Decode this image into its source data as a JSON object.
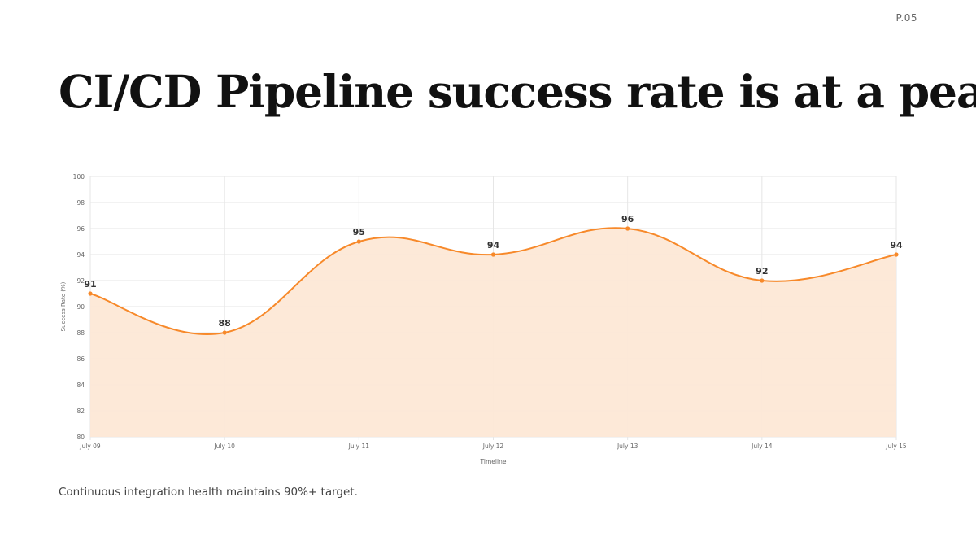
{
  "page": {
    "number": "P.05",
    "title": "CI/CD Pipeline success rate is at a peak",
    "caption": "Continuous integration health maintains 90%+ target."
  },
  "chart_data": {
    "type": "area",
    "categories": [
      "July 09",
      "July 10",
      "July 11",
      "July 12",
      "July 13",
      "July 14",
      "July 15"
    ],
    "series": [
      {
        "values": [
          91,
          88,
          95,
          94,
          96,
          92,
          94
        ]
      }
    ],
    "data_labels": [
      "91",
      "88",
      "95",
      "94",
      "96",
      "92",
      "94"
    ],
    "xlabel": "Timeline",
    "ylabel": "Success Rate (%)",
    "ylim": [
      80,
      100
    ],
    "yticks": [
      "80",
      "82",
      "84",
      "86",
      "88",
      "90",
      "92",
      "94",
      "96",
      "98",
      "100"
    ],
    "grid": true,
    "legend": "none",
    "colors": {
      "line": "#f7892a",
      "fill": "#fde8d6",
      "grid": "#e6e6e6"
    }
  }
}
